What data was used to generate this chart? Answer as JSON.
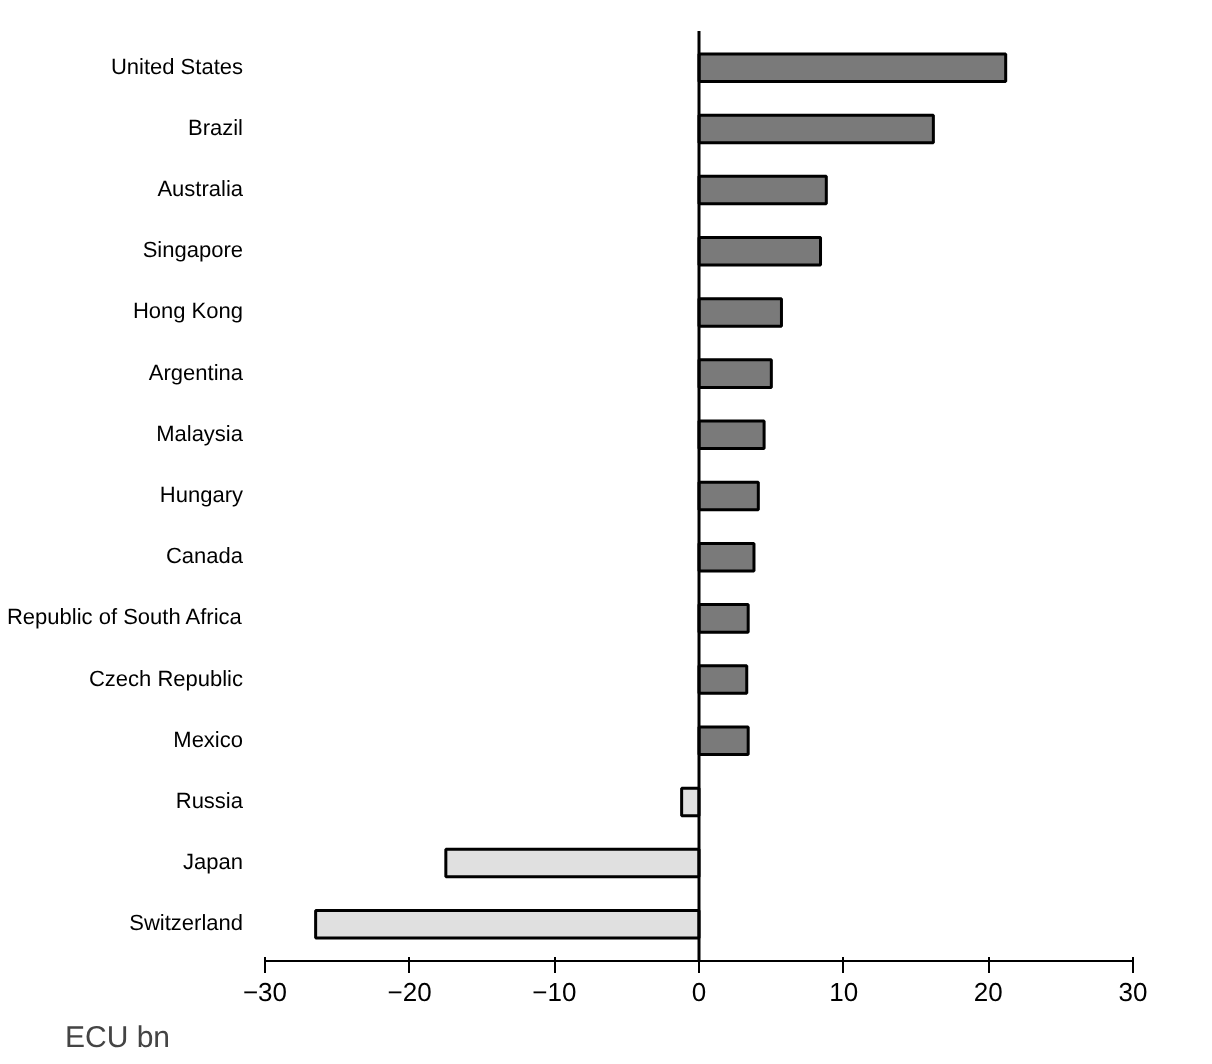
{
  "chart_data": {
    "type": "bar",
    "orientation": "horizontal",
    "xlabel": "ECU bn",
    "categories": [
      "United States",
      "Brazil",
      "Australia",
      "Singapore",
      "Hong Kong",
      "Argentina",
      "Malaysia",
      "Hungary",
      "Canada",
      "Republic of South Africa",
      "Czech Republic",
      "Mexico",
      "Russia",
      "Japan",
      "Switzerland"
    ],
    "values": [
      21.2,
      16.2,
      8.8,
      8.4,
      5.7,
      5.0,
      4.5,
      4.1,
      3.8,
      3.4,
      3.3,
      3.4,
      -1.2,
      -17.5,
      -26.5
    ],
    "colors": [
      "#7a7a7a",
      "#7a7a7a",
      "#7a7a7a",
      "#7a7a7a",
      "#7a7a7a",
      "#7a7a7a",
      "#7a7a7a",
      "#7a7a7a",
      "#7a7a7a",
      "#7a7a7a",
      "#7a7a7a",
      "#7a7a7a",
      "#e0e0e0",
      "#e0e0e0",
      "#e0e0e0"
    ],
    "xlim": [
      -30,
      30
    ],
    "xticks": [
      -30,
      -20,
      -10,
      0,
      10,
      20,
      30
    ]
  }
}
